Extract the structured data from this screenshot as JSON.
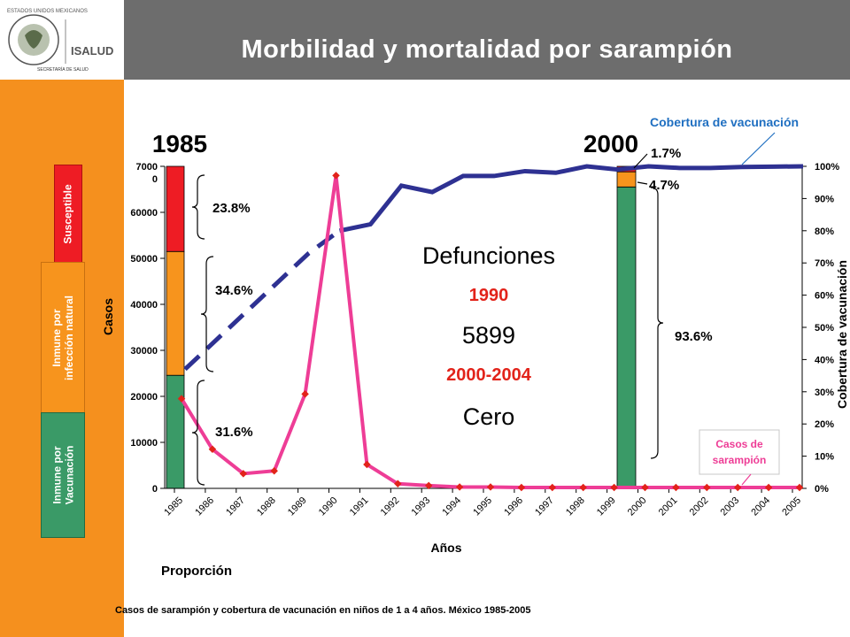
{
  "header": {
    "title": "Morbilidad y mortalidad por sarampión",
    "logo_text": "ISALUD",
    "logo_sub": "SECRETARÍA DE SALUD",
    "seal_text": "ESTADOS UNIDOS MEXICANOS"
  },
  "legend_boxes": {
    "susceptible": "Susceptible",
    "natural_line1": "Inmune por",
    "natural_line2": "infección natural",
    "vacuna_line1": "Inmune por",
    "vacuna_line2": "Vacunación"
  },
  "colors": {
    "orange": "#f5901e",
    "header": "#6d6d6d",
    "susceptible": "#ee1c24",
    "natural": "#f7941d",
    "vacuna": "#3a9a67",
    "cases_line": "#ee3d96",
    "coverage_line": "#2e3192",
    "blue_label": "#1f6fc1",
    "red_label": "#e2231a"
  },
  "labels": {
    "year_1985": "1985",
    "year_2000": "2000",
    "p_1985_susc": "23.8%",
    "p_1985_nat": "34.6%",
    "p_1985_vac": "31.6%",
    "p_2000_susc": "1.7%",
    "p_2000_nat": "4.7%",
    "p_2000_vac": "93.6%",
    "cobertura_title": "Cobertura de vacunación",
    "casos_callout_1": "Casos de",
    "casos_callout_2": "sarampión",
    "defunciones": "Defunciones",
    "year_1990": "1990",
    "deaths_1990": "5899",
    "range_2000_2004": "2000-2004",
    "cero": "Cero",
    "proporcion": "Proporción",
    "caption": "Casos de sarampión y cobertura de vacunación en niños de 1 a 4 años. México 1985-2005"
  },
  "chart_data": {
    "type": "line",
    "xlabel": "Años",
    "ylabel": "Casos",
    "ylabel_right": "Cobertura de vacunación",
    "x": [
      "1985",
      "1986",
      "1987",
      "1988",
      "1989",
      "1990",
      "1991",
      "1992",
      "1993",
      "1994",
      "1995",
      "1996",
      "1997",
      "1998",
      "1999",
      "2000",
      "2001",
      "2002",
      "2003",
      "2004",
      "2005"
    ],
    "ylim": [
      0,
      70000
    ],
    "y_ticks": [
      "0",
      "10000",
      "20000",
      "30000",
      "40000",
      "50000",
      "60000",
      "7000\n0"
    ],
    "ylim_right": [
      0,
      100
    ],
    "y_right_ticks": [
      "0%",
      "10%",
      "20%",
      "30%",
      "40%",
      "50%",
      "60%",
      "70%",
      "80%",
      "90%",
      "100%"
    ],
    "grid": false,
    "series": [
      {
        "name": "Casos de sarampión",
        "axis": "left",
        "values": [
          19500,
          8500,
          3200,
          3800,
          20500,
          68000,
          5200,
          1000,
          600,
          300,
          300,
          200,
          200,
          200,
          200,
          200,
          200,
          200,
          200,
          200,
          200
        ]
      },
      {
        "name": "Cobertura de vacunación",
        "axis": "right",
        "dashed_until": "1990",
        "values": [
          37,
          46,
          55,
          64,
          73,
          80,
          82,
          94,
          92,
          97,
          97,
          98.5,
          98,
          100,
          99,
          100,
          99.5,
          99.5,
          99.8,
          99.9,
          100
        ]
      }
    ],
    "stacked_bars": [
      {
        "year": "1985",
        "vacunacion": 31.6,
        "natural": 34.6,
        "susceptible": 23.8
      },
      {
        "year": "2000",
        "vacunacion": 93.6,
        "natural": 4.7,
        "susceptible": 1.7
      }
    ]
  }
}
